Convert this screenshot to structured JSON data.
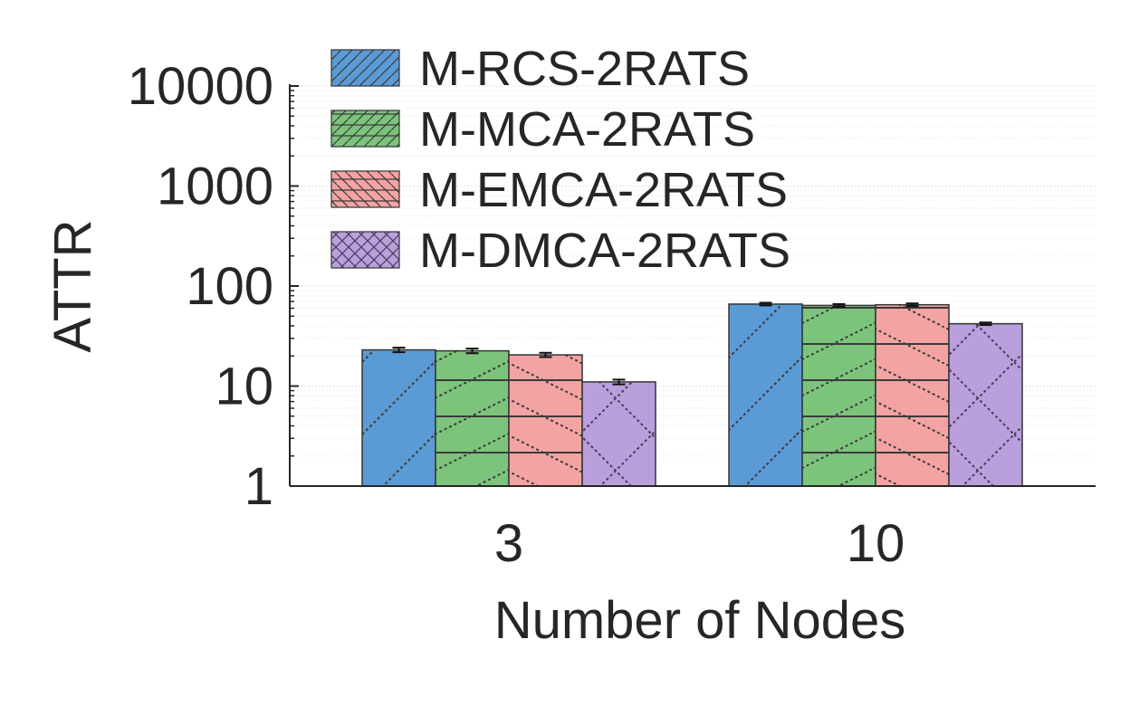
{
  "chart_data": {
    "type": "bar",
    "scale": "log",
    "title": "",
    "xlabel": "Number of Nodes",
    "ylabel": "ATTR",
    "categories": [
      "3",
      "10"
    ],
    "ylim": [
      1,
      10000
    ],
    "yticks": [
      1,
      10,
      100,
      1000,
      10000
    ],
    "ytick_labels": [
      "1",
      "10",
      "100",
      "1000",
      "10000"
    ],
    "grid": true,
    "legend_position": "top-left",
    "series": [
      {
        "name": "M-RCS-2RATS",
        "values": [
          23,
          66
        ],
        "errors": [
          1.2,
          2.0
        ],
        "color": "#5b9bd5",
        "pattern": "diag-forward"
      },
      {
        "name": "M-MCA-2RATS",
        "values": [
          22.5,
          64
        ],
        "errors": [
          1.2,
          2.0
        ],
        "color": "#7cc47c",
        "pattern": "horizontal-diag"
      },
      {
        "name": "M-EMCA-2RATS",
        "values": [
          20.5,
          65
        ],
        "errors": [
          1.0,
          2.0
        ],
        "color": "#f4a3a3",
        "pattern": "horizontal-backdiag"
      },
      {
        "name": "M-DMCA-2RATS",
        "values": [
          11,
          42
        ],
        "errors": [
          0.6,
          1.2
        ],
        "color": "#b9a0dc",
        "pattern": "crosshatch"
      }
    ]
  }
}
